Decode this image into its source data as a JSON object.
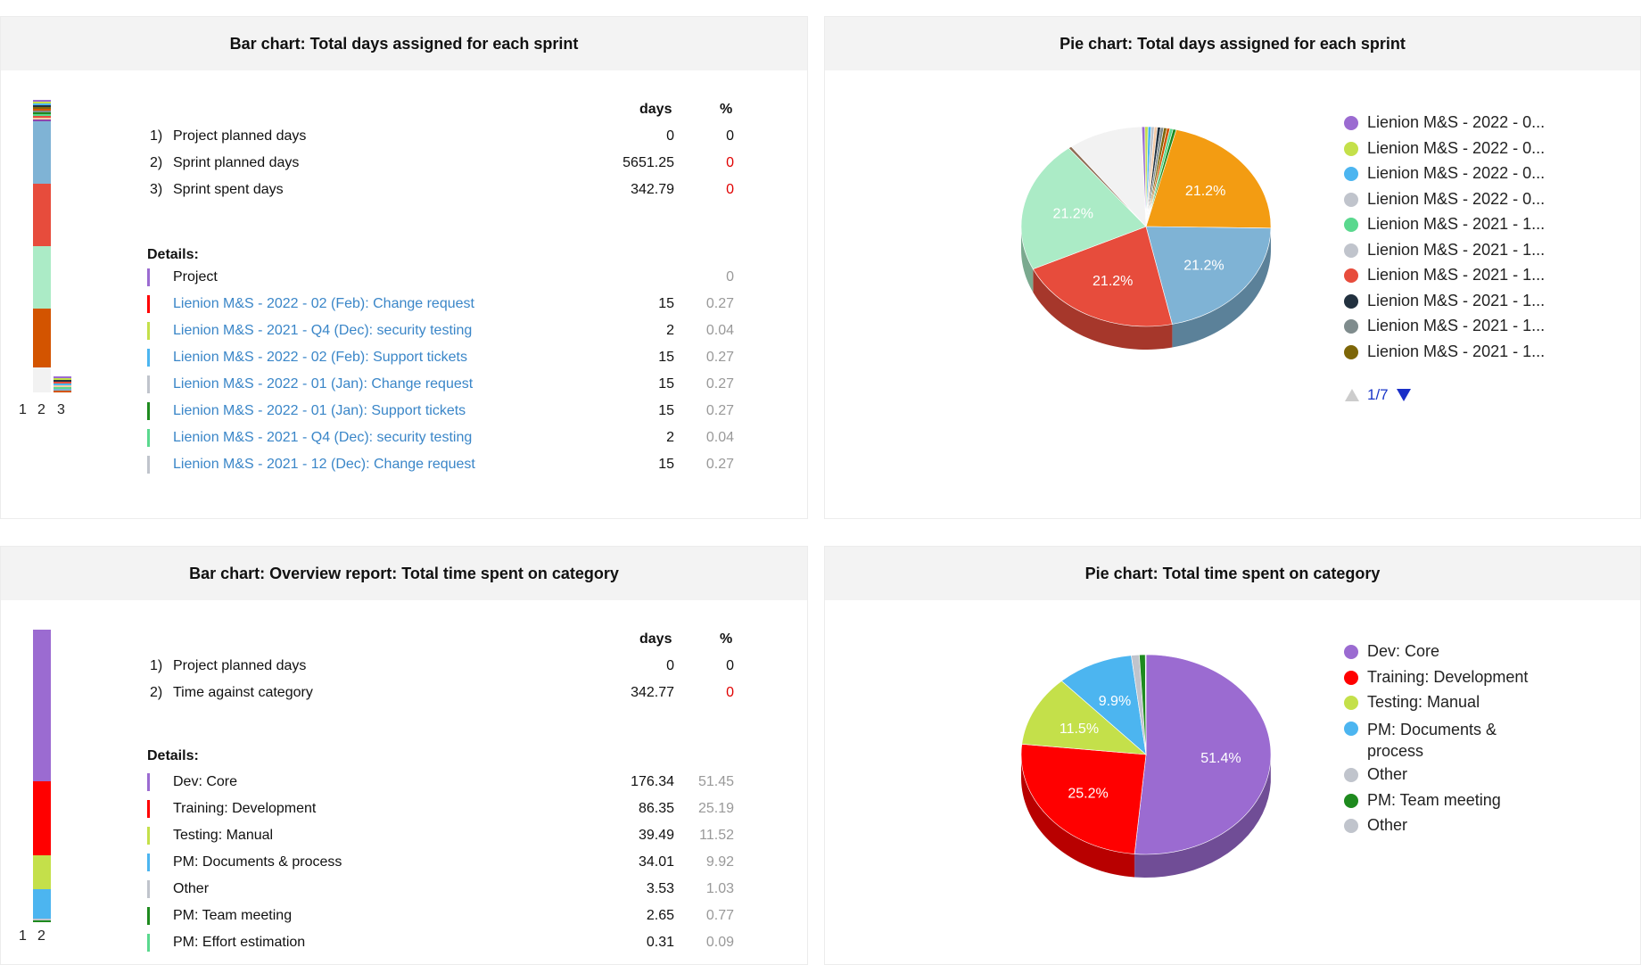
{
  "panels": {
    "sprint_bar": {
      "title": "Bar chart: Total days assigned for each sprint",
      "axis_labels": [
        "1",
        "2",
        "3"
      ],
      "col_days": "days",
      "col_pct": "%",
      "summary": [
        {
          "idx": "1)",
          "label": "Project planned days",
          "days": "0",
          "pct": "0"
        },
        {
          "idx": "2)",
          "label": "Sprint planned days",
          "days": "5651.25",
          "pct": "0"
        },
        {
          "idx": "3)",
          "label": "Sprint spent days",
          "days": "342.79",
          "pct": "0"
        }
      ],
      "details_title": "Details:",
      "details": [
        {
          "label": "Project",
          "days": "",
          "pct": "0",
          "color": "#9b6bd1"
        },
        {
          "label": "Lienion M&S - 2022 - 02 (Feb): Change request",
          "days": "15",
          "pct": "0.27",
          "color": "#ff0000"
        },
        {
          "label": "Lienion M&S - 2021 - Q4 (Dec): security testing",
          "days": "2",
          "pct": "0.04",
          "color": "#c4e04a"
        },
        {
          "label": "Lienion M&S - 2022 - 02 (Feb): Support tickets",
          "days": "15",
          "pct": "0.27",
          "color": "#4cb5f0"
        },
        {
          "label": "Lienion M&S - 2022 - 01 (Jan): Change request",
          "days": "15",
          "pct": "0.27",
          "color": "#c0c4cc"
        },
        {
          "label": "Lienion M&S - 2022 - 01 (Jan): Support tickets",
          "days": "15",
          "pct": "0.27",
          "color": "#1e8a1e"
        },
        {
          "label": "Lienion M&S - 2021 - Q4 (Dec): security testing",
          "days": "2",
          "pct": "0.04",
          "color": "#5ad88e"
        },
        {
          "label": "Lienion M&S - 2021 - 12 (Dec): Change request",
          "days": "15",
          "pct": "0.27",
          "color": "#c0c4cc"
        }
      ]
    },
    "sprint_pie": {
      "title": "Pie chart: Total days assigned for each sprint",
      "legend": [
        {
          "label": "Lienion M&S - 2022 - 0...",
          "color": "#9b6bd1"
        },
        {
          "label": "Lienion M&S - 2022 - 0...",
          "color": "#c4e04a"
        },
        {
          "label": "Lienion M&S - 2022 - 0...",
          "color": "#4cb5f0"
        },
        {
          "label": "Lienion M&S - 2022 - 0...",
          "color": "#c0c4cc"
        },
        {
          "label": "Lienion M&S - 2021 - 1...",
          "color": "#5ad88e"
        },
        {
          "label": "Lienion M&S - 2021 - 1...",
          "color": "#c0c4cc"
        },
        {
          "label": "Lienion M&S - 2021 - 1...",
          "color": "#e74c3c"
        },
        {
          "label": "Lienion M&S - 2021 - 1...",
          "color": "#22313f"
        },
        {
          "label": "Lienion M&S - 2021 - 1...",
          "color": "#7f8c8d"
        },
        {
          "label": "Lienion M&S - 2021 - 1...",
          "color": "#7d6608"
        }
      ],
      "pager": "1/7"
    },
    "category_bar": {
      "title": "Bar chart: Overview report: Total time spent on category",
      "axis_labels": [
        "1",
        "2"
      ],
      "col_days": "days",
      "col_pct": "%",
      "summary": [
        {
          "idx": "1)",
          "label": "Project planned days",
          "days": "0",
          "pct": "0"
        },
        {
          "idx": "2)",
          "label": "Time against category",
          "days": "342.77",
          "pct": "0"
        }
      ],
      "details_title": "Details:",
      "details": [
        {
          "label": "Dev: Core",
          "days": "176.34",
          "pct": "51.45",
          "color": "#9b6bd1"
        },
        {
          "label": "Training: Development",
          "days": "86.35",
          "pct": "25.19",
          "color": "#ff0000"
        },
        {
          "label": "Testing: Manual",
          "days": "39.49",
          "pct": "11.52",
          "color": "#c4e04a"
        },
        {
          "label": "PM: Documents & process",
          "days": "34.01",
          "pct": "9.92",
          "color": "#4cb5f0"
        },
        {
          "label": "Other",
          "days": "3.53",
          "pct": "1.03",
          "color": "#c0c4cc"
        },
        {
          "label": "PM: Team meeting",
          "days": "2.65",
          "pct": "0.77",
          "color": "#1e8a1e"
        },
        {
          "label": "PM: Effort estimation",
          "days": "0.31",
          "pct": "0.09",
          "color": "#5ad88e"
        }
      ]
    },
    "category_pie": {
      "title": "Pie chart: Total time spent on category",
      "legend": [
        {
          "label": "Dev: Core",
          "color": "#9b6bd1"
        },
        {
          "label": "Training: Development",
          "color": "#ff0000"
        },
        {
          "label": "Testing: Manual",
          "color": "#c4e04a"
        },
        {
          "label": "PM: Documents & process",
          "color": "#4cb5f0"
        },
        {
          "label": "Other",
          "color": "#c0c4cc"
        },
        {
          "label": "PM: Team meeting",
          "color": "#1e8a1e"
        },
        {
          "label": "Other",
          "color": "#c0c4cc"
        }
      ]
    }
  },
  "chart_data": [
    {
      "type": "pie",
      "title": "Pie chart: Total days assigned for each sprint",
      "slices": [
        {
          "label": "",
          "value": 21.2,
          "display": "21.2%",
          "color": "#f39c12"
        },
        {
          "label": "",
          "value": 21.2,
          "display": "21.2%",
          "color": "#7fb3d5"
        },
        {
          "label": "",
          "value": 21.2,
          "display": "21.2%",
          "color": "#e74c3c"
        },
        {
          "label": "",
          "value": 21.2,
          "display": "21.2%",
          "color": "#abebc6"
        },
        {
          "label": "",
          "value": 0.4,
          "display": "",
          "color": "#8e6b52"
        },
        {
          "label": "",
          "value": 9.6,
          "display": "",
          "color": "#f2f2f2"
        },
        {
          "label": "",
          "value": 0.4,
          "display": "",
          "color": "#9b6bd1"
        },
        {
          "label": "",
          "value": 0.4,
          "display": "",
          "color": "#c4e04a"
        },
        {
          "label": "",
          "value": 0.4,
          "display": "",
          "color": "#4cb5f0"
        },
        {
          "label": "",
          "value": 0.4,
          "display": "",
          "color": "#c0c4cc"
        },
        {
          "label": "",
          "value": 0.4,
          "display": "",
          "color": "#f5cba7"
        },
        {
          "label": "",
          "value": 0.4,
          "display": "",
          "color": "#22313f"
        },
        {
          "label": "",
          "value": 0.4,
          "display": "",
          "color": "#7f8c8d"
        },
        {
          "label": "",
          "value": 0.4,
          "display": "",
          "color": "#7d6608"
        },
        {
          "label": "",
          "value": 0.4,
          "display": "",
          "color": "#d35400"
        },
        {
          "label": "",
          "value": 0.4,
          "display": "",
          "color": "#5ad88e"
        },
        {
          "label": "",
          "value": 0.4,
          "display": "",
          "color": "#1e8a1e"
        }
      ]
    },
    {
      "type": "pie",
      "title": "Pie chart: Total time spent on category",
      "slices": [
        {
          "label": "Dev: Core",
          "value": 51.45,
          "display": "51.4%",
          "color": "#9b6bd1"
        },
        {
          "label": "Training: Development",
          "value": 25.19,
          "display": "25.2%",
          "color": "#ff0000"
        },
        {
          "label": "Testing: Manual",
          "value": 11.52,
          "display": "11.5%",
          "color": "#c4e04a"
        },
        {
          "label": "PM: Documents & process",
          "value": 9.92,
          "display": "9.9%",
          "color": "#4cb5f0"
        },
        {
          "label": "Other",
          "value": 1.03,
          "display": "",
          "color": "#c0c4cc"
        },
        {
          "label": "PM: Team meeting",
          "value": 0.77,
          "display": "",
          "color": "#1e8a1e"
        },
        {
          "label": "PM: Effort estimation",
          "value": 0.09,
          "display": "",
          "color": "#5ad88e"
        }
      ]
    },
    {
      "type": "bar",
      "title": "Bar chart: Total days assigned for each sprint",
      "categories": [
        "1",
        "2",
        "3"
      ],
      "series": [
        {
          "values": [
            0,
            5651.25,
            342.79
          ]
        }
      ]
    },
    {
      "type": "bar",
      "title": "Bar chart: Overview report: Total time spent on category",
      "categories": [
        "1",
        "2"
      ],
      "series": [
        {
          "values": [
            0,
            342.77
          ]
        }
      ]
    }
  ]
}
